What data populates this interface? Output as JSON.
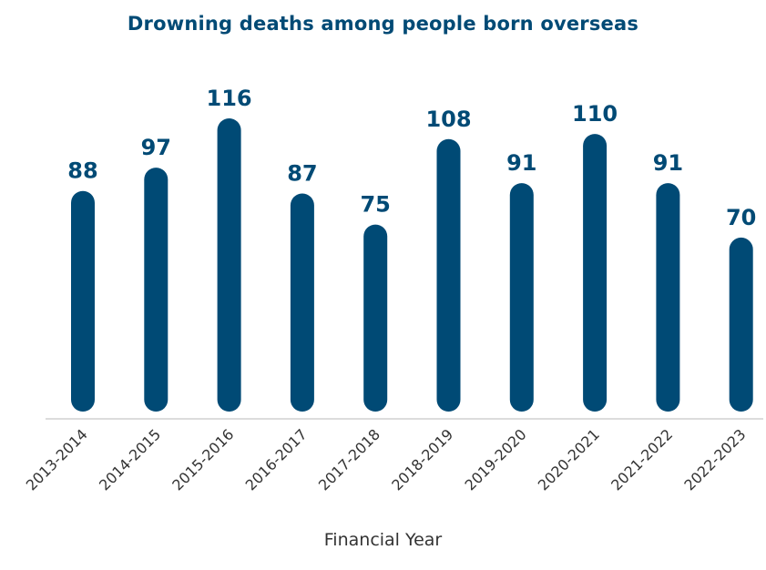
{
  "colors": {
    "bar": "#004a75",
    "title": "#004a75",
    "value_label": "#004a75",
    "tick_label": "#333333",
    "axis_title": "#333333",
    "axis_line": "#d0d0d0"
  },
  "chart_data": {
    "type": "bar",
    "title": "Drowning deaths among people born overseas",
    "xlabel": "Financial Year",
    "ylabel": "",
    "categories": [
      "2013-2014",
      "2014-2015",
      "2015-2016",
      "2016-2017",
      "2017-2018",
      "2018-2019",
      "2019-2020",
      "2020-2021",
      "2021-2022",
      "2022-2023"
    ],
    "values": [
      88,
      97,
      116,
      87,
      75,
      108,
      91,
      110,
      91,
      70
    ],
    "data_labels": [
      "88",
      "97",
      "116",
      "87",
      "75",
      "108",
      "91",
      "110",
      "91",
      "70"
    ],
    "ylim": [
      0,
      116
    ],
    "grid": false,
    "legend": "none",
    "bar_style": "rounded"
  }
}
